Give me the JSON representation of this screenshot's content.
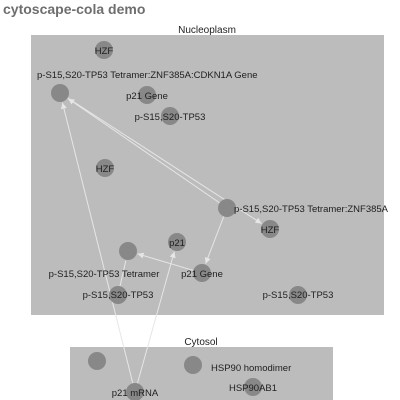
{
  "app": {
    "title": "cytoscape-cola demo"
  },
  "graph": {
    "compounds": [
      {
        "id": "nucleoplasm",
        "label": "Nucleoplasm"
      },
      {
        "id": "cytosol",
        "label": "Cytosol"
      }
    ],
    "nodes": [
      {
        "id": "n-hzf-1",
        "label": "HZF",
        "parent": "nucleoplasm"
      },
      {
        "id": "n-tetramer-cdkn1a",
        "label": "p-S15,S20-TP53 Tetramer:ZNF385A:CDKN1A Gene",
        "parent": "nucleoplasm"
      },
      {
        "id": "n-p21-gene-1",
        "label": "p21 Gene",
        "parent": "nucleoplasm"
      },
      {
        "id": "n-ps15-1",
        "label": "p-S15,S20-TP53",
        "parent": "nucleoplasm"
      },
      {
        "id": "n-hzf-2",
        "label": "HZF",
        "parent": "nucleoplasm"
      },
      {
        "id": "n-tetramer-znf385a",
        "label": "p-S15,S20-TP53 Tetramer:ZNF385A",
        "parent": "nucleoplasm"
      },
      {
        "id": "n-hzf-3",
        "label": "HZF",
        "parent": "nucleoplasm"
      },
      {
        "id": "n-p21",
        "label": "p21",
        "parent": "nucleoplasm"
      },
      {
        "id": "n-tetramer",
        "label": "p-S15,S20-TP53 Tetramer",
        "parent": "nucleoplasm"
      },
      {
        "id": "n-p21-gene-2",
        "label": "p21 Gene",
        "parent": "nucleoplasm"
      },
      {
        "id": "n-ps15-2",
        "label": "p-S15,S20-TP53",
        "parent": "nucleoplasm"
      },
      {
        "id": "n-ps15-3",
        "label": "p-S15,S20-TP53",
        "parent": "nucleoplasm"
      },
      {
        "id": "n-cytosol-a",
        "label": "",
        "parent": "cytosol"
      },
      {
        "id": "n-hsp90-homodimer",
        "label": "HSP90 homodimer",
        "parent": "cytosol"
      },
      {
        "id": "n-p21-mrna",
        "label": "p21 mRNA",
        "parent": "cytosol"
      },
      {
        "id": "n-hsp90ab1",
        "label": "HSP90AB1",
        "parent": "cytosol"
      }
    ],
    "edges": [
      {
        "source": "n-tetramer-znf385a",
        "target": "n-tetramer-cdkn1a",
        "arrow": true
      },
      {
        "source": "n-tetramer-cdkn1a",
        "target": "n-hzf-3",
        "arrow": true
      },
      {
        "source": "n-tetramer-znf385a",
        "target": "n-p21-gene-2",
        "arrow": true
      },
      {
        "source": "n-p21-gene-2",
        "target": "n-tetramer",
        "arrow": true
      },
      {
        "source": "n-ps15-2",
        "target": "n-tetramer",
        "arrow": false
      },
      {
        "source": "n-p21-mrna",
        "target": "n-p21",
        "arrow": true
      },
      {
        "source": "n-p21-mrna",
        "target": "n-tetramer-cdkn1a",
        "arrow": true
      }
    ]
  }
}
